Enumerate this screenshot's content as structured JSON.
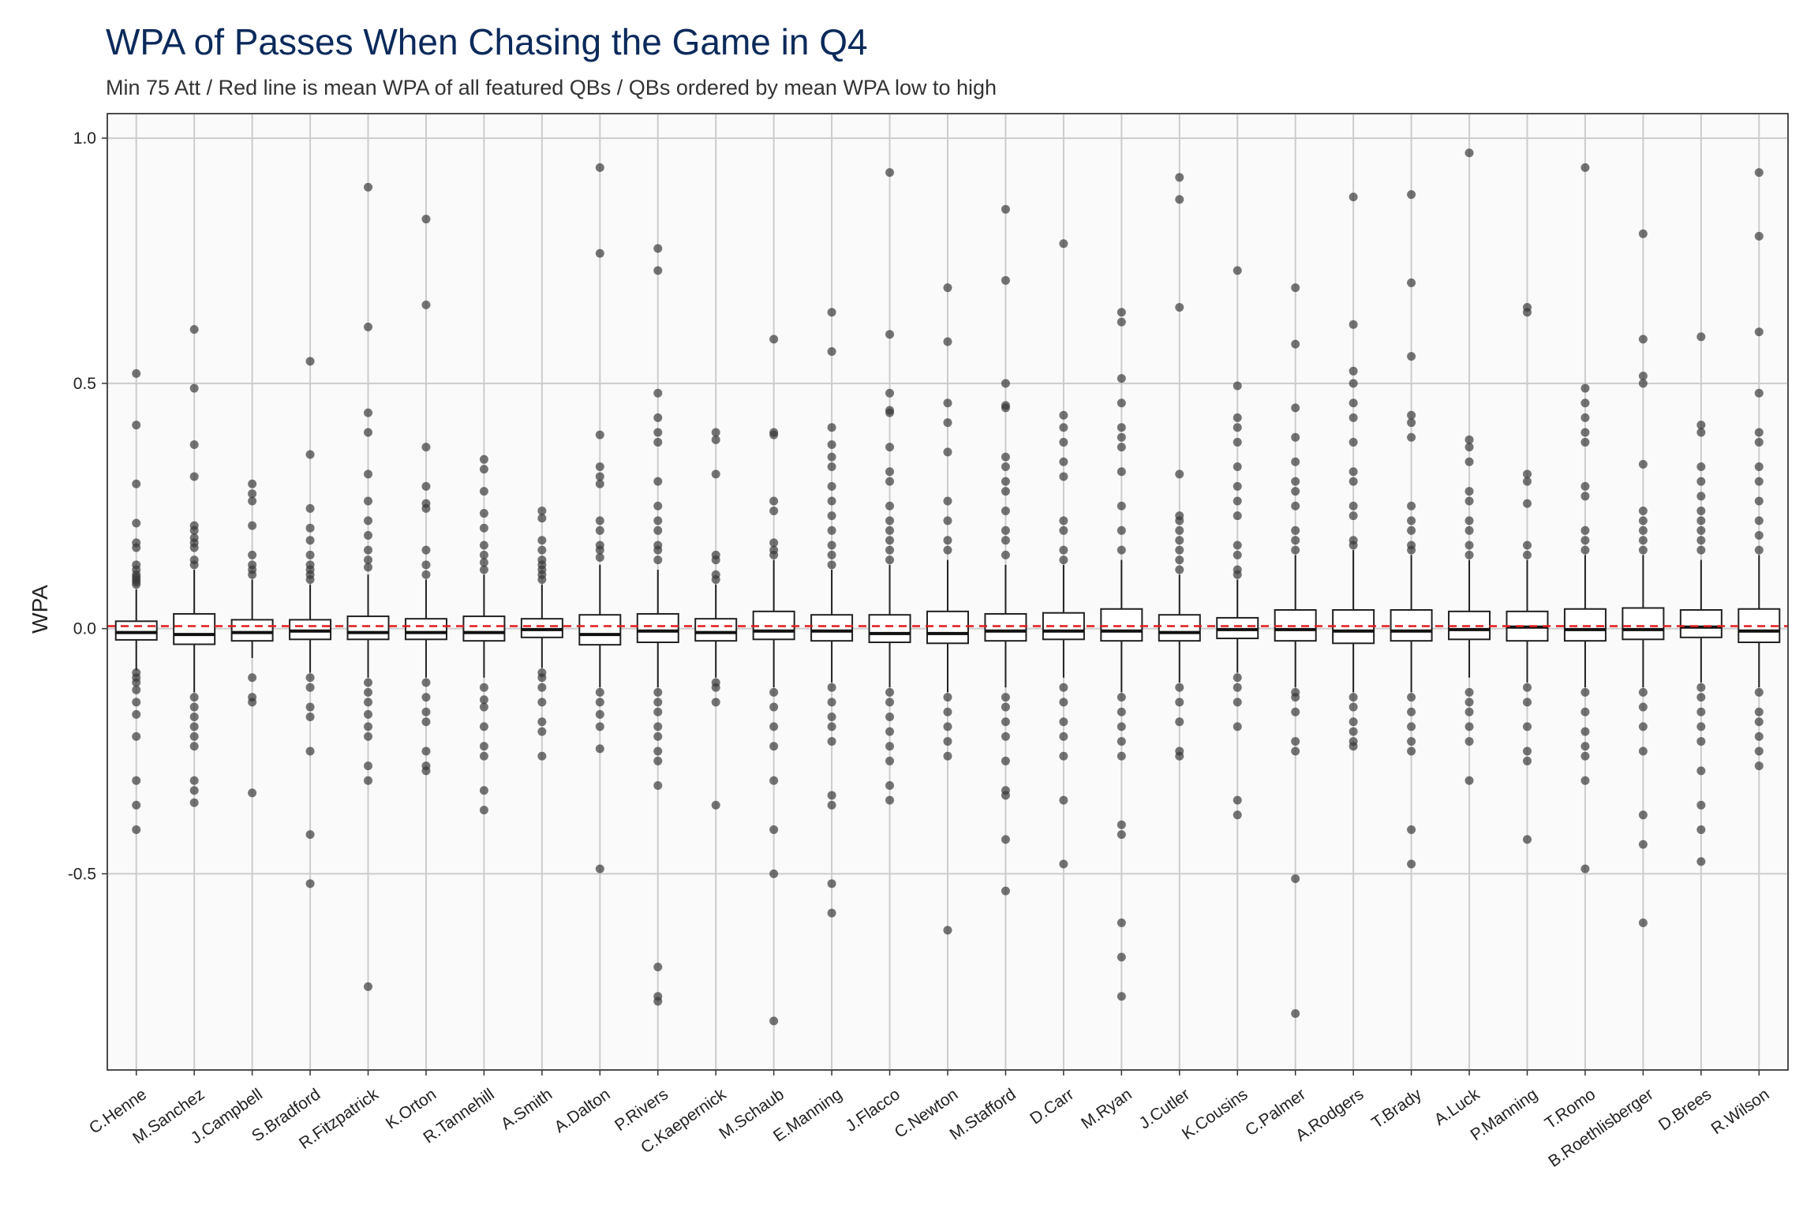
{
  "chart_data": {
    "type": "boxplot",
    "title": "WPA of Passes When Chasing the Game in Q4",
    "subtitle": "Min 75 Att / Red line is mean WPA of all featured QBs / QBs ordered by mean WPA low to high",
    "xlabel": "",
    "ylabel": "WPA",
    "ylim": [
      -0.9,
      1.05
    ],
    "yticks": [
      1.0,
      0.5,
      0.0,
      -0.5
    ],
    "ytick_labels": [
      "1.0",
      "0.5",
      "0.0",
      "-0.5"
    ],
    "grid": true,
    "mean_line": {
      "value": 0.005,
      "color": "#e31a1c",
      "style": "dashed"
    },
    "colors": {
      "panel": "#fafafa",
      "grid": "#cccccc",
      "points": "#3a3a3a",
      "title": "#0b2a5b"
    },
    "series": [
      {
        "name": "C.Henne",
        "q1": -0.023,
        "median": -0.008,
        "q3": 0.015,
        "whisker_low": -0.085,
        "whisker_high": 0.08,
        "outliers": [
          0.52,
          0.415,
          0.295,
          0.215,
          0.175,
          0.165,
          0.13,
          0.12,
          0.11,
          0.105,
          0.1,
          0.095,
          0.09,
          -0.09,
          -0.1,
          -0.11,
          -0.125,
          -0.15,
          -0.175,
          -0.22,
          -0.31,
          -0.36,
          -0.41
        ]
      },
      {
        "name": "M.Sanchez",
        "q1": -0.032,
        "median": -0.012,
        "q3": 0.03,
        "whisker_low": -0.13,
        "whisker_high": 0.12,
        "outliers": [
          0.61,
          0.49,
          0.375,
          0.31,
          0.21,
          0.2,
          0.185,
          0.175,
          0.165,
          0.14,
          0.13,
          -0.14,
          -0.16,
          -0.18,
          -0.2,
          -0.22,
          -0.24,
          -0.31,
          -0.33,
          -0.355
        ]
      },
      {
        "name": "J.Campbell",
        "q1": -0.025,
        "median": -0.008,
        "q3": 0.018,
        "whisker_low": -0.06,
        "whisker_high": 0.1,
        "outliers": [
          0.295,
          0.275,
          0.26,
          0.21,
          0.15,
          0.13,
          0.12,
          0.11,
          -0.1,
          -0.14,
          -0.15,
          -0.335
        ]
      },
      {
        "name": "S.Bradford",
        "q1": -0.022,
        "median": -0.005,
        "q3": 0.018,
        "whisker_low": -0.09,
        "whisker_high": 0.09,
        "outliers": [
          0.545,
          0.355,
          0.245,
          0.205,
          0.18,
          0.15,
          0.13,
          0.12,
          0.11,
          0.1,
          -0.1,
          -0.12,
          -0.16,
          -0.18,
          -0.25,
          -0.42,
          -0.52
        ]
      },
      {
        "name": "R.Fitzpatrick",
        "q1": -0.022,
        "median": -0.008,
        "q3": 0.025,
        "whisker_low": -0.1,
        "whisker_high": 0.11,
        "outliers": [
          0.9,
          0.615,
          0.44,
          0.4,
          0.315,
          0.26,
          0.22,
          0.19,
          0.16,
          0.14,
          0.125,
          -0.11,
          -0.13,
          -0.15,
          -0.175,
          -0.2,
          -0.22,
          -0.28,
          -0.31,
          -0.73
        ]
      },
      {
        "name": "K.Orton",
        "q1": -0.022,
        "median": -0.008,
        "q3": 0.02,
        "whisker_low": -0.1,
        "whisker_high": 0.1,
        "outliers": [
          0.835,
          0.66,
          0.37,
          0.29,
          0.255,
          0.245,
          0.16,
          0.13,
          0.11,
          -0.11,
          -0.14,
          -0.17,
          -0.19,
          -0.25,
          -0.28,
          -0.29
        ]
      },
      {
        "name": "R.Tannehill",
        "q1": -0.025,
        "median": -0.008,
        "q3": 0.025,
        "whisker_low": -0.1,
        "whisker_high": 0.11,
        "outliers": [
          0.345,
          0.325,
          0.28,
          0.235,
          0.205,
          0.17,
          0.15,
          0.135,
          0.12,
          -0.12,
          -0.145,
          -0.16,
          -0.2,
          -0.24,
          -0.26,
          -0.33,
          -0.37
        ]
      },
      {
        "name": "A.Smith",
        "q1": -0.018,
        "median": -0.002,
        "q3": 0.02,
        "whisker_low": -0.08,
        "whisker_high": 0.09,
        "outliers": [
          0.24,
          0.225,
          0.18,
          0.16,
          0.14,
          0.13,
          0.12,
          0.11,
          0.1,
          -0.09,
          -0.1,
          -0.12,
          -0.15,
          -0.19,
          -0.21,
          -0.26
        ]
      },
      {
        "name": "A.Dalton",
        "q1": -0.033,
        "median": -0.012,
        "q3": 0.028,
        "whisker_low": -0.12,
        "whisker_high": 0.13,
        "outliers": [
          0.94,
          0.765,
          0.395,
          0.33,
          0.31,
          0.295,
          0.22,
          0.2,
          0.17,
          0.16,
          0.145,
          -0.13,
          -0.15,
          -0.175,
          -0.2,
          -0.245,
          -0.49
        ]
      },
      {
        "name": "P.Rivers",
        "q1": -0.028,
        "median": -0.005,
        "q3": 0.03,
        "whisker_low": -0.12,
        "whisker_high": 0.12,
        "outliers": [
          0.775,
          0.73,
          0.48,
          0.43,
          0.4,
          0.38,
          0.3,
          0.25,
          0.22,
          0.2,
          0.17,
          0.16,
          0.14,
          -0.13,
          -0.15,
          -0.17,
          -0.2,
          -0.22,
          -0.25,
          -0.27,
          -0.32,
          -0.69,
          -0.75,
          -0.76
        ]
      },
      {
        "name": "C.Kaepernick",
        "q1": -0.025,
        "median": -0.008,
        "q3": 0.02,
        "whisker_low": -0.1,
        "whisker_high": 0.09,
        "outliers": [
          0.4,
          0.385,
          0.315,
          0.15,
          0.14,
          0.11,
          0.1,
          -0.11,
          -0.12,
          -0.15,
          -0.36
        ]
      },
      {
        "name": "M.Schaub",
        "q1": -0.022,
        "median": -0.005,
        "q3": 0.035,
        "whisker_low": -0.12,
        "whisker_high": 0.14,
        "outliers": [
          0.59,
          0.4,
          0.395,
          0.26,
          0.24,
          0.175,
          0.16,
          0.15,
          -0.13,
          -0.16,
          -0.2,
          -0.24,
          -0.31,
          -0.41,
          -0.5,
          -0.8
        ]
      },
      {
        "name": "E.Manning",
        "q1": -0.025,
        "median": -0.005,
        "q3": 0.028,
        "whisker_low": -0.11,
        "whisker_high": 0.12,
        "outliers": [
          0.645,
          0.565,
          0.41,
          0.375,
          0.35,
          0.33,
          0.29,
          0.26,
          0.23,
          0.2,
          0.17,
          0.15,
          0.13,
          -0.12,
          -0.15,
          -0.18,
          -0.2,
          -0.23,
          -0.34,
          -0.36,
          -0.52,
          -0.58
        ]
      },
      {
        "name": "J.Flacco",
        "q1": -0.028,
        "median": -0.01,
        "q3": 0.028,
        "whisker_low": -0.12,
        "whisker_high": 0.13,
        "outliers": [
          0.93,
          0.6,
          0.48,
          0.445,
          0.44,
          0.37,
          0.32,
          0.3,
          0.25,
          0.22,
          0.2,
          0.18,
          0.16,
          0.14,
          -0.13,
          -0.15,
          -0.18,
          -0.21,
          -0.24,
          -0.27,
          -0.32,
          -0.35
        ]
      },
      {
        "name": "C.Newton",
        "q1": -0.03,
        "median": -0.01,
        "q3": 0.035,
        "whisker_low": -0.13,
        "whisker_high": 0.14,
        "outliers": [
          0.695,
          0.585,
          0.46,
          0.42,
          0.36,
          0.26,
          0.22,
          0.18,
          0.16,
          -0.14,
          -0.17,
          -0.2,
          -0.23,
          -0.26,
          -0.615
        ]
      },
      {
        "name": "M.Stafford",
        "q1": -0.025,
        "median": -0.005,
        "q3": 0.03,
        "whisker_low": -0.12,
        "whisker_high": 0.13,
        "outliers": [
          0.855,
          0.71,
          0.5,
          0.455,
          0.45,
          0.35,
          0.33,
          0.3,
          0.28,
          0.24,
          0.2,
          0.18,
          0.15,
          -0.14,
          -0.16,
          -0.19,
          -0.22,
          -0.27,
          -0.33,
          -0.34,
          -0.43,
          -0.535
        ]
      },
      {
        "name": "D.Carr",
        "q1": -0.022,
        "median": -0.005,
        "q3": 0.032,
        "whisker_low": -0.1,
        "whisker_high": 0.13,
        "outliers": [
          0.785,
          0.435,
          0.41,
          0.38,
          0.34,
          0.31,
          0.22,
          0.2,
          0.16,
          0.14,
          -0.12,
          -0.15,
          -0.19,
          -0.22,
          -0.26,
          -0.35,
          -0.48
        ]
      },
      {
        "name": "M.Ryan",
        "q1": -0.025,
        "median": -0.005,
        "q3": 0.04,
        "whisker_low": -0.13,
        "whisker_high": 0.14,
        "outliers": [
          0.645,
          0.625,
          0.51,
          0.46,
          0.41,
          0.39,
          0.37,
          0.32,
          0.25,
          0.2,
          0.16,
          -0.14,
          -0.17,
          -0.2,
          -0.23,
          -0.26,
          -0.4,
          -0.42,
          -0.6,
          -0.67,
          -0.75
        ]
      },
      {
        "name": "J.Cutler",
        "q1": -0.025,
        "median": -0.008,
        "q3": 0.028,
        "whisker_low": -0.11,
        "whisker_high": 0.11,
        "outliers": [
          0.92,
          0.875,
          0.655,
          0.315,
          0.23,
          0.22,
          0.2,
          0.18,
          0.16,
          0.14,
          0.12,
          -0.12,
          -0.15,
          -0.19,
          -0.25,
          -0.26
        ]
      },
      {
        "name": "K.Cousins",
        "q1": -0.02,
        "median": -0.002,
        "q3": 0.022,
        "whisker_low": -0.09,
        "whisker_high": 0.1,
        "outliers": [
          0.73,
          0.495,
          0.43,
          0.41,
          0.38,
          0.33,
          0.29,
          0.26,
          0.23,
          0.17,
          0.15,
          0.12,
          0.11,
          -0.1,
          -0.12,
          -0.15,
          -0.2,
          -0.35,
          -0.38
        ]
      },
      {
        "name": "C.Palmer",
        "q1": -0.025,
        "median": -0.002,
        "q3": 0.038,
        "whisker_low": -0.12,
        "whisker_high": 0.15,
        "outliers": [
          0.695,
          0.58,
          0.45,
          0.39,
          0.34,
          0.3,
          0.28,
          0.25,
          0.2,
          0.18,
          0.16,
          -0.13,
          -0.14,
          -0.17,
          -0.23,
          -0.25,
          -0.51,
          -0.785
        ]
      },
      {
        "name": "A.Rodgers",
        "q1": -0.03,
        "median": -0.005,
        "q3": 0.038,
        "whisker_low": -0.13,
        "whisker_high": 0.16,
        "outliers": [
          0.88,
          0.62,
          0.525,
          0.5,
          0.46,
          0.43,
          0.38,
          0.32,
          0.3,
          0.25,
          0.23,
          0.18,
          0.17,
          -0.14,
          -0.16,
          -0.19,
          -0.21,
          -0.23,
          -0.24
        ]
      },
      {
        "name": "T.Brady",
        "q1": -0.025,
        "median": -0.005,
        "q3": 0.038,
        "whisker_low": -0.13,
        "whisker_high": 0.15,
        "outliers": [
          0.885,
          0.705,
          0.555,
          0.435,
          0.42,
          0.39,
          0.25,
          0.22,
          0.2,
          0.17,
          0.16,
          -0.14,
          -0.17,
          -0.2,
          -0.23,
          -0.25,
          -0.41,
          -0.48
        ]
      },
      {
        "name": "A.Luck",
        "q1": -0.022,
        "median": -0.002,
        "q3": 0.035,
        "whisker_low": -0.1,
        "whisker_high": 0.14,
        "outliers": [
          0.97,
          0.385,
          0.37,
          0.34,
          0.28,
          0.26,
          0.22,
          0.2,
          0.17,
          0.15,
          -0.13,
          -0.15,
          -0.17,
          -0.2,
          -0.23,
          -0.31
        ]
      },
      {
        "name": "P.Manning",
        "q1": -0.025,
        "median": 0.003,
        "q3": 0.035,
        "whisker_low": -0.11,
        "whisker_high": 0.14,
        "outliers": [
          0.655,
          0.645,
          0.315,
          0.3,
          0.255,
          0.17,
          0.15,
          -0.12,
          -0.15,
          -0.2,
          -0.25,
          -0.27,
          -0.43
        ]
      },
      {
        "name": "T.Romo",
        "q1": -0.025,
        "median": -0.002,
        "q3": 0.04,
        "whisker_low": -0.12,
        "whisker_high": 0.15,
        "outliers": [
          0.94,
          0.49,
          0.46,
          0.43,
          0.4,
          0.38,
          0.29,
          0.27,
          0.2,
          0.18,
          0.16,
          -0.13,
          -0.17,
          -0.21,
          -0.24,
          -0.26,
          -0.31,
          -0.49
        ]
      },
      {
        "name": "B.Roethlisberger",
        "q1": -0.022,
        "median": -0.002,
        "q3": 0.042,
        "whisker_low": -0.12,
        "whisker_high": 0.15,
        "outliers": [
          0.805,
          0.59,
          0.515,
          0.5,
          0.335,
          0.24,
          0.22,
          0.2,
          0.18,
          0.16,
          -0.13,
          -0.16,
          -0.2,
          -0.25,
          -0.38,
          -0.44,
          -0.6
        ]
      },
      {
        "name": "D.Brees",
        "q1": -0.018,
        "median": 0.003,
        "q3": 0.038,
        "whisker_low": -0.11,
        "whisker_high": 0.14,
        "outliers": [
          0.595,
          0.415,
          0.4,
          0.33,
          0.3,
          0.27,
          0.24,
          0.22,
          0.2,
          0.18,
          0.16,
          -0.12,
          -0.14,
          -0.17,
          -0.2,
          -0.23,
          -0.29,
          -0.36,
          -0.41,
          -0.475
        ]
      },
      {
        "name": "R.Wilson",
        "q1": -0.028,
        "median": -0.005,
        "q3": 0.04,
        "whisker_low": -0.12,
        "whisker_high": 0.15,
        "outliers": [
          0.93,
          0.8,
          0.605,
          0.48,
          0.4,
          0.38,
          0.33,
          0.3,
          0.26,
          0.22,
          0.19,
          0.16,
          -0.13,
          -0.17,
          -0.19,
          -0.22,
          -0.25,
          -0.28
        ]
      }
    ]
  }
}
